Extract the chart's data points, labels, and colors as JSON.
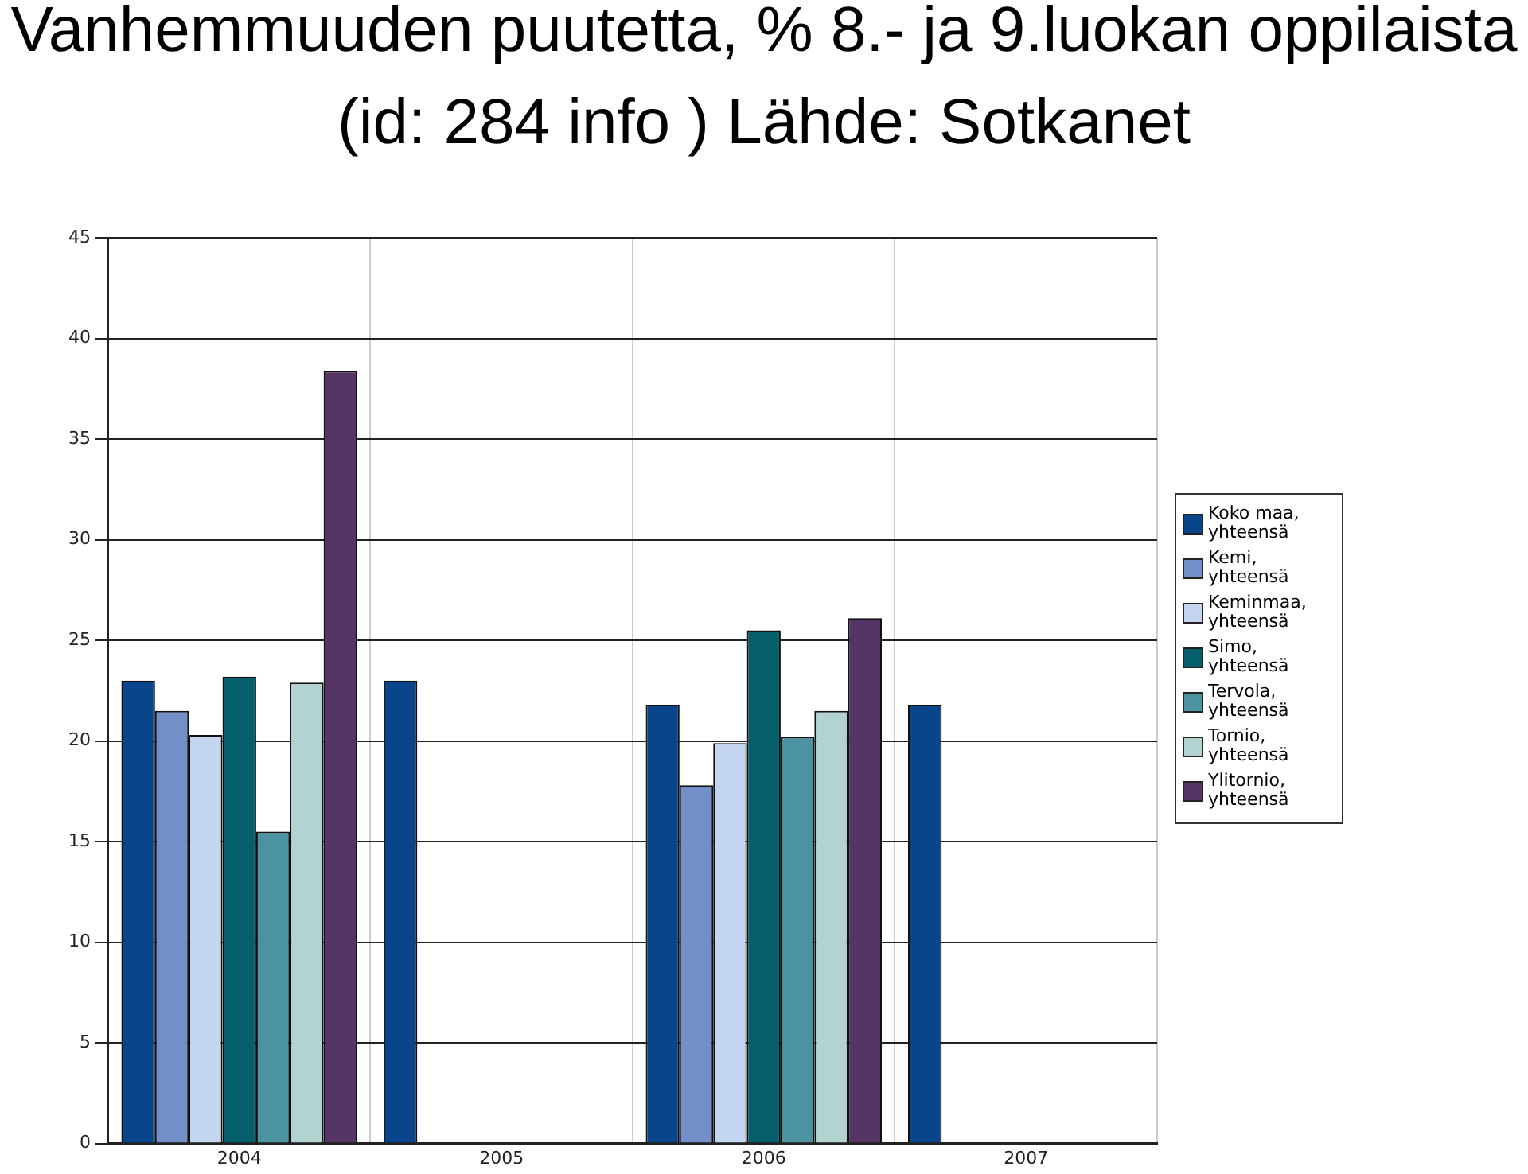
{
  "chart_data": {
    "type": "bar",
    "title": "Vanhemmuuden puutetta, % 8.- ja 9.luokan oppilaista (id: 284 info ) Lähde: Sotkanet",
    "categories": [
      "2004",
      "2005",
      "2006",
      "2007"
    ],
    "series": [
      {
        "name": "Koko maa, yhteensä",
        "color": "#08458a",
        "values": [
          23.0,
          23.0,
          21.8,
          21.8
        ]
      },
      {
        "name": "Kemi, yhteensä",
        "color": "#728fc7",
        "values": [
          21.5,
          null,
          17.8,
          null
        ]
      },
      {
        "name": "Keminmaa, yhteensä",
        "color": "#c4d6ef",
        "values": [
          20.3,
          null,
          19.9,
          null
        ]
      },
      {
        "name": "Simo, yhteensä",
        "color": "#045e6c",
        "values": [
          23.2,
          null,
          25.5,
          null
        ]
      },
      {
        "name": "Tervola, yhteensä",
        "color": "#4b93a1",
        "values": [
          15.5,
          null,
          20.2,
          null
        ]
      },
      {
        "name": "Tornio, yhteensä",
        "color": "#b3d3d3",
        "values": [
          22.9,
          null,
          21.5,
          null
        ]
      },
      {
        "name": "Ylitornio, yhteensä",
        "color": "#553565",
        "values": [
          38.4,
          null,
          26.1,
          null
        ]
      }
    ],
    "ylim": [
      0,
      45
    ],
    "yticks": [
      0,
      5,
      10,
      15,
      20,
      25,
      30,
      35,
      40,
      45
    ],
    "grid": true,
    "legend": "right"
  }
}
